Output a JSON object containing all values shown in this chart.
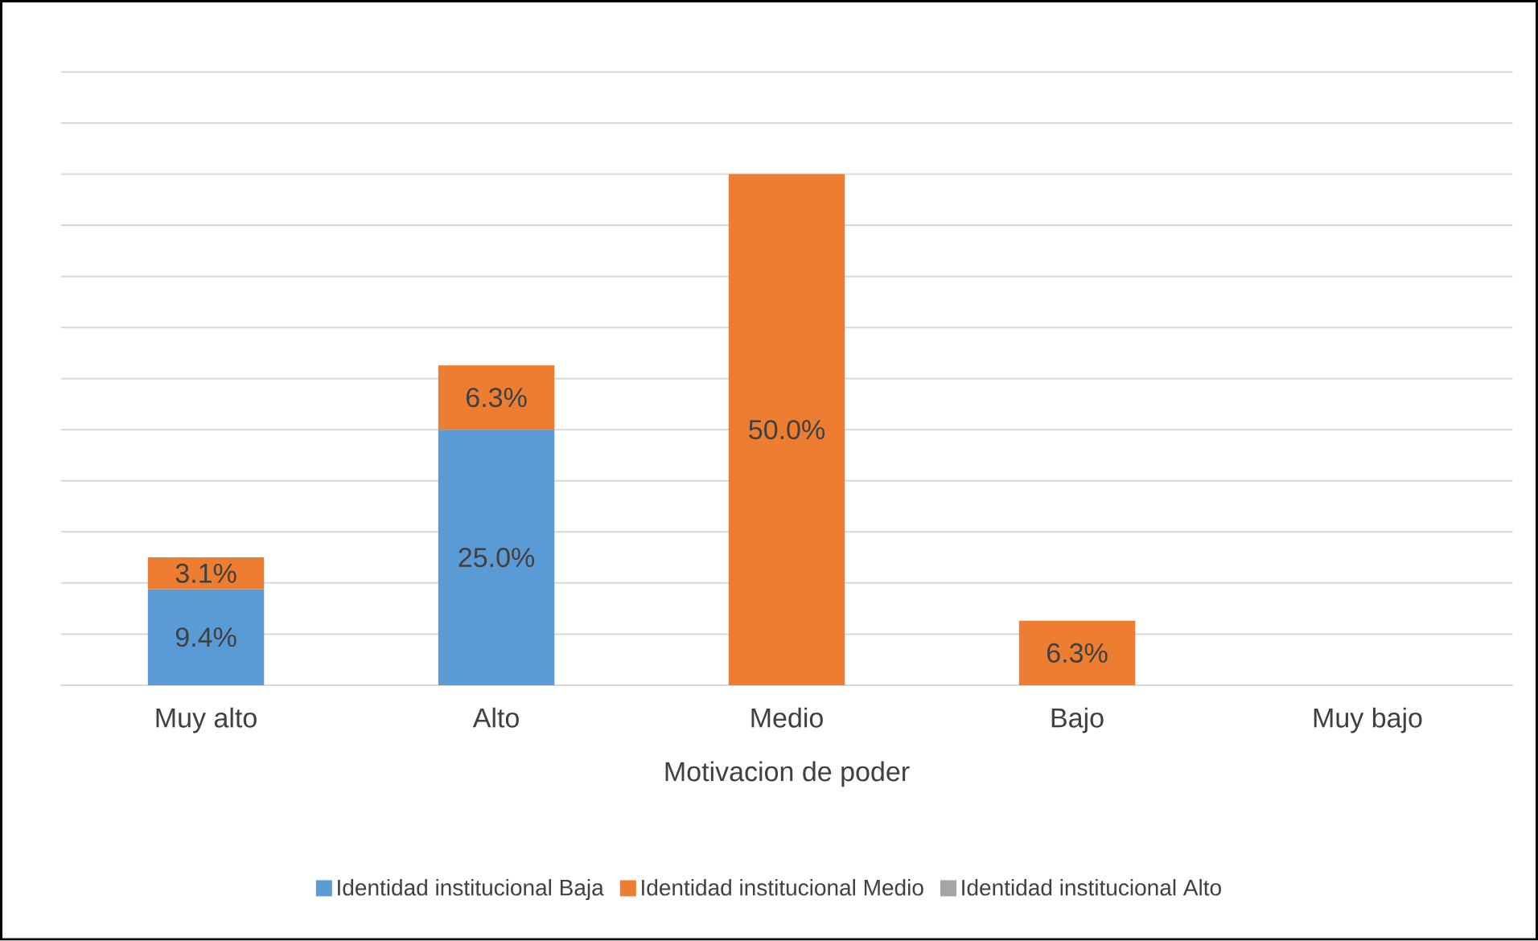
{
  "chart_data": {
    "type": "bar",
    "stacked": true,
    "xlabel": "Motivacion de poder",
    "categories": [
      "Muy alto",
      "Alto",
      "Medio",
      "Bajo",
      "Muy bajo"
    ],
    "series": [
      {
        "name": "Identidad institucional Baja",
        "color": "#5b9bd5",
        "values": [
          9.4,
          25.0,
          null,
          null,
          null
        ],
        "value_labels": [
          "9.4%",
          "25.0%",
          null,
          null,
          null
        ]
      },
      {
        "name": "Identidad institucional Medio",
        "color": "#ed7d31",
        "values": [
          3.1,
          6.3,
          50.0,
          6.3,
          null
        ],
        "value_labels": [
          "3.1%",
          "6.3%",
          "50.0%",
          "6.3%",
          null
        ]
      },
      {
        "name": "Identidad institucional Alto",
        "color": "#a5a5a5",
        "values": [
          null,
          null,
          null,
          null,
          null
        ],
        "value_labels": [
          null,
          null,
          null,
          null,
          null
        ]
      }
    ],
    "grid": "y",
    "legend": "bottom"
  }
}
